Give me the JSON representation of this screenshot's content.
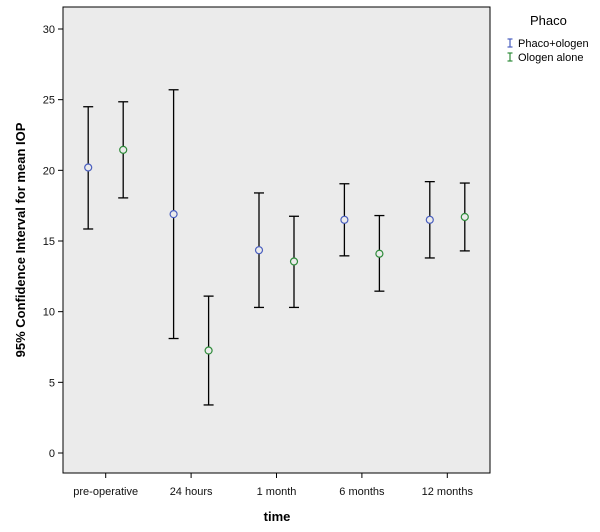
{
  "chart_data": {
    "type": "errorbar",
    "xlabel": "time",
    "ylabel": "95% Confidence Interval  for mean IOP",
    "ylim": [
      0,
      30
    ],
    "yticks": [
      0,
      5,
      10,
      15,
      20,
      25,
      30
    ],
    "categories": [
      "pre-operative",
      "24 hours",
      "1 month",
      "6 months",
      "12 months"
    ],
    "legend_title": "Phaco",
    "legend_position": "top-right outside plot",
    "plot_background": "#ebebeb",
    "grid": false,
    "series": [
      {
        "name": "Phaco+ologen",
        "color": "#4a5fbf",
        "mean": [
          20.2,
          16.9,
          14.35,
          16.5,
          16.5
        ],
        "lower": [
          15.85,
          8.1,
          10.3,
          13.95,
          13.8
        ],
        "upper": [
          24.5,
          25.7,
          18.4,
          19.05,
          19.2
        ]
      },
      {
        "name": "Ologen alone",
        "color": "#2e8b3a",
        "mean": [
          21.45,
          7.25,
          13.55,
          14.1,
          16.7
        ],
        "lower": [
          18.05,
          3.4,
          10.3,
          11.45,
          14.3
        ],
        "upper": [
          24.85,
          11.1,
          16.75,
          16.8,
          19.1
        ]
      }
    ]
  }
}
